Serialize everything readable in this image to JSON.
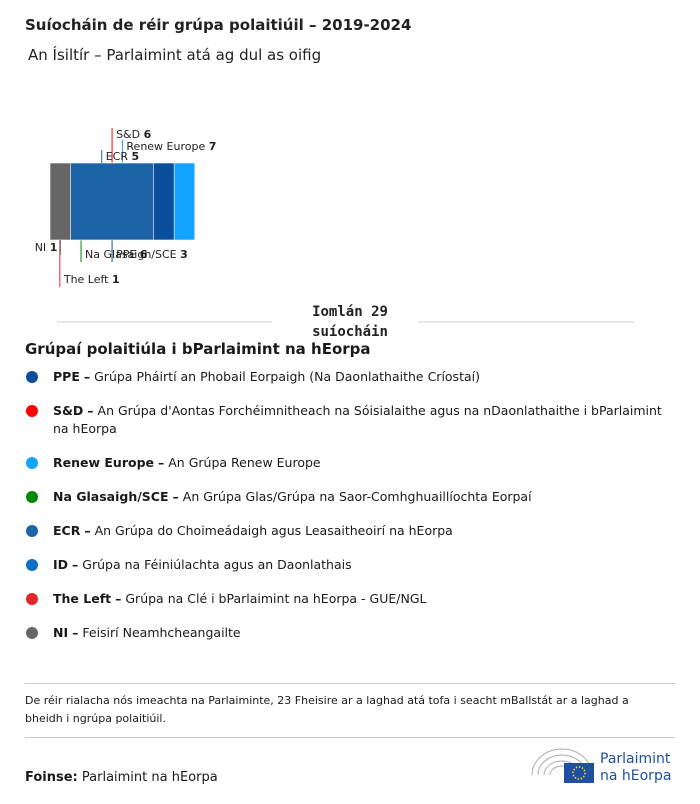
{
  "chart_data": {
    "type": "bar",
    "title": "Suíocháin de réir grúpa polaitiúil – 2019-2024",
    "subtitle": "An Ísiltír – Parlaimint atá ag dul as oifig",
    "stacked": true,
    "series": [
      {
        "name": "The Left",
        "color": "#e3242b",
        "values": [
          1
        ]
      },
      {
        "name": "S&D",
        "color": "#ff0000",
        "values": [
          6
        ]
      },
      {
        "name": "Na Glasaigh/SCE",
        "color": "#008a00",
        "values": [
          3
        ]
      },
      {
        "name": "Renew Europe",
        "color": "#12a4ff",
        "values": [
          7
        ]
      },
      {
        "name": "PPE",
        "color": "#0a4e9c",
        "values": [
          6
        ]
      },
      {
        "name": "ECR",
        "color": "#1d63a8",
        "values": [
          5
        ]
      },
      {
        "name": "NI",
        "color": "#666666",
        "values": [
          1
        ]
      }
    ],
    "total_prefix": "Iomlán",
    "total": 29,
    "total_suffix": "suíocháin"
  },
  "legend": {
    "title": "Grúpaí polaitiúla i bParlaimint na hEorpa",
    "separator": "–",
    "items": [
      {
        "name": "PPE",
        "color": "#0a4e9c",
        "description": "Grúpa Pháirtí an Phobail Eorpaigh (Na Daonlathaithe Críostaí)"
      },
      {
        "name": "S&D",
        "color": "#ff0000",
        "description": "An Grúpa d'Aontas Forchéimnitheach na Sóisialaithe agus na nDaonlathaithe i bParlaimint na hEorpa"
      },
      {
        "name": "Renew Europe",
        "color": "#12a4ff",
        "description": "An Grúpa Renew Europe"
      },
      {
        "name": "Na Glasaigh/SCE",
        "color": "#008a00",
        "description": "An Grúpa Glas/Grúpa na Saor-Comhghuaillíochta Eorpaí"
      },
      {
        "name": "ECR",
        "color": "#1d63a8",
        "description": "An Grúpa do Choimeádaigh agus Leasaitheoirí na hEorpa"
      },
      {
        "name": "ID",
        "color": "#0c6fc0",
        "description": "Grúpa na Féiniúlachta agus an Daonlathais"
      },
      {
        "name": "The Left",
        "color": "#e3242b",
        "description": "Grúpa na Clé i bParlaimint na hEorpa - GUE/NGL"
      },
      {
        "name": "NI",
        "color": "#666666",
        "description": "Feisirí Neamhcheangailte"
      }
    ]
  },
  "note": "De réir rialacha nós imeachta na Parlaiminte, 23 Fheisire ar a laghad atá tofa i seacht mBallstát ar a laghad a bheidh i ngrúpa polaitiúil.",
  "source": {
    "label": "Foinse:",
    "text": "Parlaimint na hEorpa"
  },
  "logo": {
    "line1": "Parlaimint",
    "line2": "na hEorpa"
  }
}
